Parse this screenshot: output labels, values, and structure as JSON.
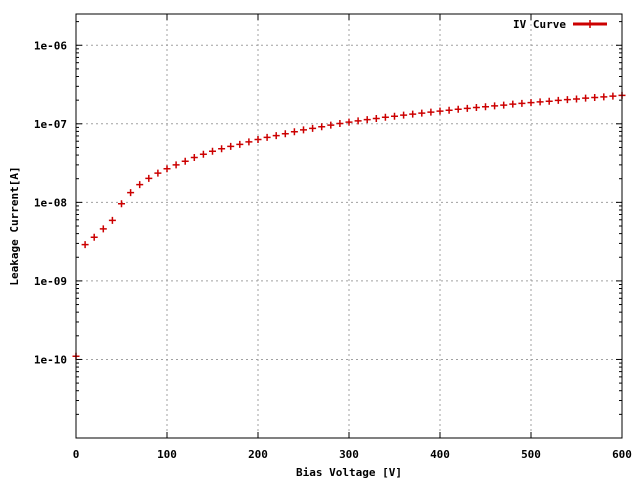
{
  "chart_data": {
    "type": "scatter",
    "title": "",
    "xlabel": "Bias Voltage [V]",
    "ylabel": "Leakage Current[A]",
    "xlim": [
      0,
      600
    ],
    "ylim": [
      1e-11,
      2.5e-06
    ],
    "yscale": "log",
    "grid": true,
    "legend_position": "top-right",
    "x_ticks": [
      0,
      100,
      200,
      300,
      400,
      500,
      600
    ],
    "x_tick_labels": [
      "0",
      "100",
      "200",
      "300",
      "400",
      "500",
      "600"
    ],
    "y_ticks": [
      1e-10,
      1e-09,
      1e-08,
      1e-07,
      1e-06
    ],
    "y_tick_labels": [
      "1e-10",
      "1e-09",
      "1e-08",
      "1e-07",
      "1e-06"
    ],
    "series": [
      {
        "name": "IV Curve",
        "color": "#cc0000",
        "marker": "plus",
        "x": [
          0,
          10,
          20,
          30,
          40,
          50,
          60,
          70,
          80,
          90,
          100,
          110,
          120,
          130,
          140,
          150,
          160,
          170,
          180,
          190,
          200,
          210,
          220,
          230,
          240,
          250,
          260,
          270,
          280,
          290,
          300,
          310,
          320,
          330,
          340,
          350,
          360,
          370,
          380,
          390,
          400,
          410,
          420,
          430,
          440,
          450,
          460,
          470,
          480,
          490,
          500,
          510,
          520,
          530,
          540,
          550,
          560,
          570,
          580,
          590,
          600
        ],
        "y": [
          1.1e-10,
          2.9e-09,
          3.6e-09,
          4.6e-09,
          5.9e-09,
          9.6e-09,
          1.33e-08,
          1.68e-08,
          2.02e-08,
          2.36e-08,
          2.68e-08,
          3e-08,
          3.34e-08,
          3.72e-08,
          4.1e-08,
          4.48e-08,
          4.82e-08,
          5.16e-08,
          5.48e-08,
          5.88e-08,
          6.32e-08,
          6.72e-08,
          7.08e-08,
          7.48e-08,
          7.92e-08,
          8.36e-08,
          8.76e-08,
          9.18e-08,
          9.62e-08,
          1.01e-07,
          1.05e-07,
          1.09e-07,
          1.13e-07,
          1.17e-07,
          1.21e-07,
          1.25e-07,
          1.29e-07,
          1.33e-07,
          1.37e-07,
          1.41e-07,
          1.45e-07,
          1.49e-07,
          1.53e-07,
          1.57e-07,
          1.61e-07,
          1.65e-07,
          1.69e-07,
          1.73e-07,
          1.78e-07,
          1.82e-07,
          1.86e-07,
          1.9e-07,
          1.94e-07,
          1.99e-07,
          2.03e-07,
          2.07e-07,
          2.12e-07,
          2.16e-07,
          2.2e-07,
          2.25e-07,
          2.3e-07
        ]
      }
    ]
  }
}
